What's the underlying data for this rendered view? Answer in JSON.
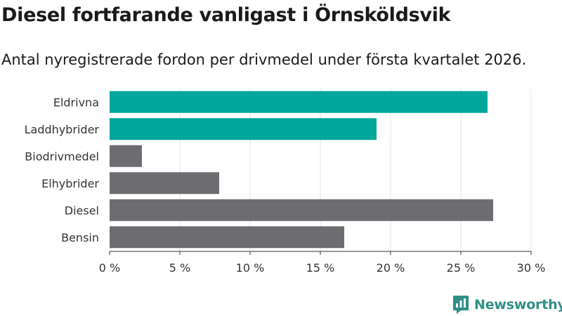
{
  "title": "Diesel fortfarande vanligast i Örnsköldsvik",
  "subtitle": "Antal nyregistrerade fordon per drivmedel under första kvartalet 2026.",
  "brand": {
    "name": "Newsworthy",
    "color": "#2f8f86"
  },
  "chart_data": {
    "type": "bar",
    "orientation": "horizontal",
    "categories": [
      "Eldrivna",
      "Laddhybrider",
      "Biodrivmedel",
      "Elhybrider",
      "Diesel",
      "Bensin"
    ],
    "values": [
      26.9,
      19.0,
      2.3,
      7.8,
      27.3,
      16.7
    ],
    "colors": [
      "#00a69a",
      "#00a69a",
      "#6d6c71",
      "#6d6c71",
      "#6d6c71",
      "#6d6c71"
    ],
    "unit": "%",
    "xlim": [
      0,
      30
    ],
    "xticks": [
      0,
      5,
      10,
      15,
      20,
      25,
      30
    ],
    "xtick_labels": [
      "0 %",
      "5 %",
      "10 %",
      "15 %",
      "20 %",
      "25 %",
      "30 %"
    ],
    "grid": true
  }
}
